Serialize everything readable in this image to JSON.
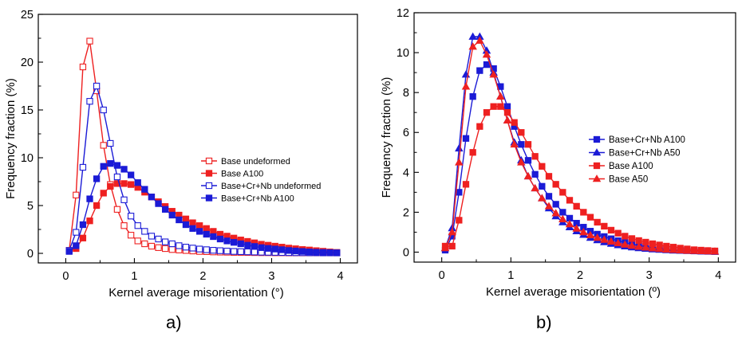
{
  "panel_labels": [
    "a)",
    "b)"
  ],
  "chart_data": [
    {
      "type": "line",
      "title": "",
      "xlabel": "Kernel average misorientation (°)",
      "ylabel": "Frequency fraction (%)",
      "xlim": [
        -0.4,
        4.25
      ],
      "ylim": [
        -1.0,
        25.0
      ],
      "xticks": [
        0,
        1,
        2,
        3,
        4
      ],
      "yticks": [
        0,
        5,
        10,
        15,
        20,
        25
      ],
      "x_tick_labels": [
        "0",
        "1",
        "2",
        "3",
        "4"
      ],
      "y_tick_labels": [
        "0",
        "5",
        "10",
        "15",
        "20",
        "25"
      ],
      "grid": false,
      "legend_position": "right",
      "x": [
        0.05,
        0.15,
        0.25,
        0.35,
        0.45,
        0.55,
        0.65,
        0.75,
        0.85,
        0.95,
        1.05,
        1.15,
        1.25,
        1.35,
        1.45,
        1.55,
        1.65,
        1.75,
        1.85,
        1.95,
        2.05,
        2.15,
        2.25,
        2.35,
        2.45,
        2.55,
        2.65,
        2.75,
        2.85,
        2.95,
        3.05,
        3.15,
        3.25,
        3.35,
        3.45,
        3.55,
        3.65,
        3.75,
        3.85,
        3.95
      ],
      "series": [
        {
          "name": "Base undeformed",
          "color": "#ee2020",
          "marker": "square-open",
          "values": [
            0.3,
            6.1,
            19.5,
            22.2,
            17.0,
            11.3,
            7.2,
            4.6,
            2.9,
            1.9,
            1.3,
            1.0,
            0.75,
            0.6,
            0.5,
            0.4,
            0.35,
            0.3,
            0.25,
            0.2,
            0.18,
            0.15,
            0.13,
            0.12,
            0.1,
            0.1,
            0.09,
            0.08,
            0.07,
            0.07,
            0.06,
            0.06,
            0.05,
            0.05,
            0.05,
            0.05,
            0.05,
            0.05,
            0.05,
            0.05
          ]
        },
        {
          "name": "Base A100",
          "color": "#ee2020",
          "marker": "square",
          "values": [
            0.3,
            0.5,
            1.6,
            3.4,
            5.0,
            6.3,
            7.0,
            7.3,
            7.3,
            7.2,
            6.9,
            6.4,
            5.9,
            5.4,
            4.9,
            4.4,
            4.0,
            3.6,
            3.2,
            2.9,
            2.6,
            2.3,
            2.0,
            1.8,
            1.6,
            1.4,
            1.25,
            1.1,
            0.95,
            0.85,
            0.75,
            0.65,
            0.55,
            0.48,
            0.4,
            0.35,
            0.28,
            0.22,
            0.15,
            0.1
          ]
        },
        {
          "name": "Base+Cr+Nb undeformed",
          "color": "#1b1bd6",
          "marker": "square-open",
          "values": [
            0.3,
            2.2,
            9.0,
            15.9,
            17.5,
            15.0,
            11.5,
            8.0,
            5.6,
            3.9,
            2.9,
            2.3,
            1.8,
            1.5,
            1.2,
            1.0,
            0.8,
            0.65,
            0.55,
            0.45,
            0.38,
            0.32,
            0.28,
            0.24,
            0.2,
            0.18,
            0.16,
            0.14,
            0.12,
            0.11,
            0.1,
            0.09,
            0.08,
            0.07,
            0.07,
            0.06,
            0.06,
            0.05,
            0.05,
            0.05
          ]
        },
        {
          "name": "Base+Cr+Nb A100",
          "color": "#1b1bd6",
          "marker": "square",
          "values": [
            0.2,
            0.8,
            3.0,
            5.7,
            7.8,
            9.1,
            9.4,
            9.2,
            8.8,
            8.2,
            7.4,
            6.7,
            5.9,
            5.2,
            4.6,
            4.0,
            3.5,
            3.0,
            2.6,
            2.3,
            2.0,
            1.75,
            1.5,
            1.3,
            1.15,
            1.0,
            0.85,
            0.72,
            0.6,
            0.52,
            0.45,
            0.38,
            0.3,
            0.25,
            0.2,
            0.15,
            0.12,
            0.1,
            0.08,
            0.05
          ]
        }
      ]
    },
    {
      "type": "line",
      "title": "",
      "xlabel": "Kernel average misorientation (º)",
      "ylabel": "Frequency fraction (%)",
      "xlim": [
        -0.4,
        4.25
      ],
      "ylim": [
        -0.5,
        12.0
      ],
      "xticks": [
        0,
        1,
        2,
        3,
        4
      ],
      "yticks": [
        0,
        2,
        4,
        6,
        8,
        10,
        12
      ],
      "x_tick_labels": [
        "0",
        "1",
        "2",
        "3",
        "4"
      ],
      "y_tick_labels": [
        "0",
        "2",
        "4",
        "6",
        "8",
        "10",
        "12"
      ],
      "grid": false,
      "legend_position": "right",
      "x": [
        0.05,
        0.15,
        0.25,
        0.35,
        0.45,
        0.55,
        0.65,
        0.75,
        0.85,
        0.95,
        1.05,
        1.15,
        1.25,
        1.35,
        1.45,
        1.55,
        1.65,
        1.75,
        1.85,
        1.95,
        2.05,
        2.15,
        2.25,
        2.35,
        2.45,
        2.55,
        2.65,
        2.75,
        2.85,
        2.95,
        3.05,
        3.15,
        3.25,
        3.35,
        3.45,
        3.55,
        3.65,
        3.75,
        3.85,
        3.95
      ],
      "series": [
        {
          "name": "Base+Cr+Nb A100",
          "color": "#1b1bd6",
          "marker": "square",
          "values": [
            0.1,
            0.8,
            3.0,
            5.7,
            7.8,
            9.1,
            9.4,
            9.2,
            8.3,
            7.3,
            6.3,
            5.4,
            4.6,
            3.9,
            3.3,
            2.8,
            2.4,
            2.0,
            1.7,
            1.45,
            1.25,
            1.05,
            0.9,
            0.78,
            0.67,
            0.57,
            0.48,
            0.4,
            0.33,
            0.28,
            0.23,
            0.19,
            0.15,
            0.12,
            0.1,
            0.08,
            0.06,
            0.05,
            0.04,
            0.03
          ]
        },
        {
          "name": "Base+Cr+Nb A50",
          "color": "#1b1bd6",
          "marker": "triangle",
          "values": [
            0.2,
            1.2,
            5.2,
            8.9,
            10.8,
            10.8,
            10.1,
            9.0,
            7.8,
            6.6,
            5.5,
            4.6,
            3.8,
            3.2,
            2.7,
            2.2,
            1.8,
            1.5,
            1.25,
            1.05,
            0.87,
            0.72,
            0.6,
            0.5,
            0.42,
            0.35,
            0.29,
            0.24,
            0.2,
            0.17,
            0.14,
            0.12,
            0.1,
            0.08,
            0.07,
            0.06,
            0.05,
            0.04,
            0.03,
            0.02
          ]
        },
        {
          "name": "Base A100",
          "color": "#ee2020",
          "marker": "square",
          "values": [
            0.3,
            0.3,
            1.6,
            3.4,
            5.0,
            6.3,
            7.0,
            7.3,
            7.3,
            7.0,
            6.5,
            6.0,
            5.4,
            4.8,
            4.3,
            3.8,
            3.4,
            3.0,
            2.6,
            2.3,
            2.0,
            1.75,
            1.5,
            1.3,
            1.1,
            0.95,
            0.8,
            0.68,
            0.58,
            0.5,
            0.42,
            0.36,
            0.3,
            0.25,
            0.2,
            0.16,
            0.12,
            0.1,
            0.08,
            0.06
          ]
        },
        {
          "name": "Base A50",
          "color": "#ee2020",
          "marker": "triangle",
          "values": [
            0.2,
            1.0,
            4.5,
            8.3,
            10.3,
            10.6,
            9.9,
            8.9,
            7.8,
            6.6,
            5.4,
            4.5,
            3.8,
            3.2,
            2.7,
            2.3,
            1.95,
            1.65,
            1.4,
            1.18,
            1.0,
            0.85,
            0.72,
            0.62,
            0.53,
            0.45,
            0.38,
            0.32,
            0.27,
            0.23,
            0.19,
            0.16,
            0.13,
            0.11,
            0.09,
            0.07,
            0.06,
            0.05,
            0.04,
            0.03
          ]
        }
      ]
    }
  ]
}
